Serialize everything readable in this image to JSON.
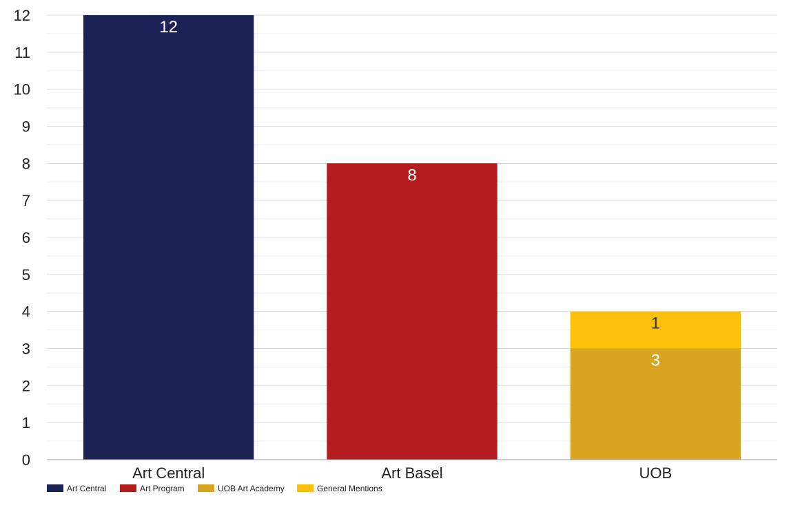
{
  "chart_data": {
    "type": "bar",
    "stacked": true,
    "categories": [
      "Art Central",
      "Art Basel",
      "UOB"
    ],
    "series": [
      {
        "name": "Art Central",
        "color": "#1d2357",
        "values": [
          12,
          0,
          0
        ],
        "label_color": "#ffffff"
      },
      {
        "name": "Art Program",
        "color": "#b31c1e",
        "values": [
          0,
          8,
          0
        ],
        "label_color": "#ffffff"
      },
      {
        "name": "UOB Art Academy",
        "color": "#d8a523",
        "values": [
          0,
          0,
          3
        ],
        "label_color": "#ffffff"
      },
      {
        "name": "General Mentions",
        "color": "#fcbf0a",
        "values": [
          0,
          0,
          1
        ],
        "label_color": "#333333"
      }
    ],
    "ylim": [
      0,
      12
    ],
    "yticks": [
      0,
      1,
      2,
      3,
      4,
      5,
      6,
      7,
      8,
      9,
      10,
      11,
      12
    ],
    "title": "",
    "xlabel": "",
    "ylabel": "",
    "grid": true,
    "legend_position": "bottom-left"
  }
}
